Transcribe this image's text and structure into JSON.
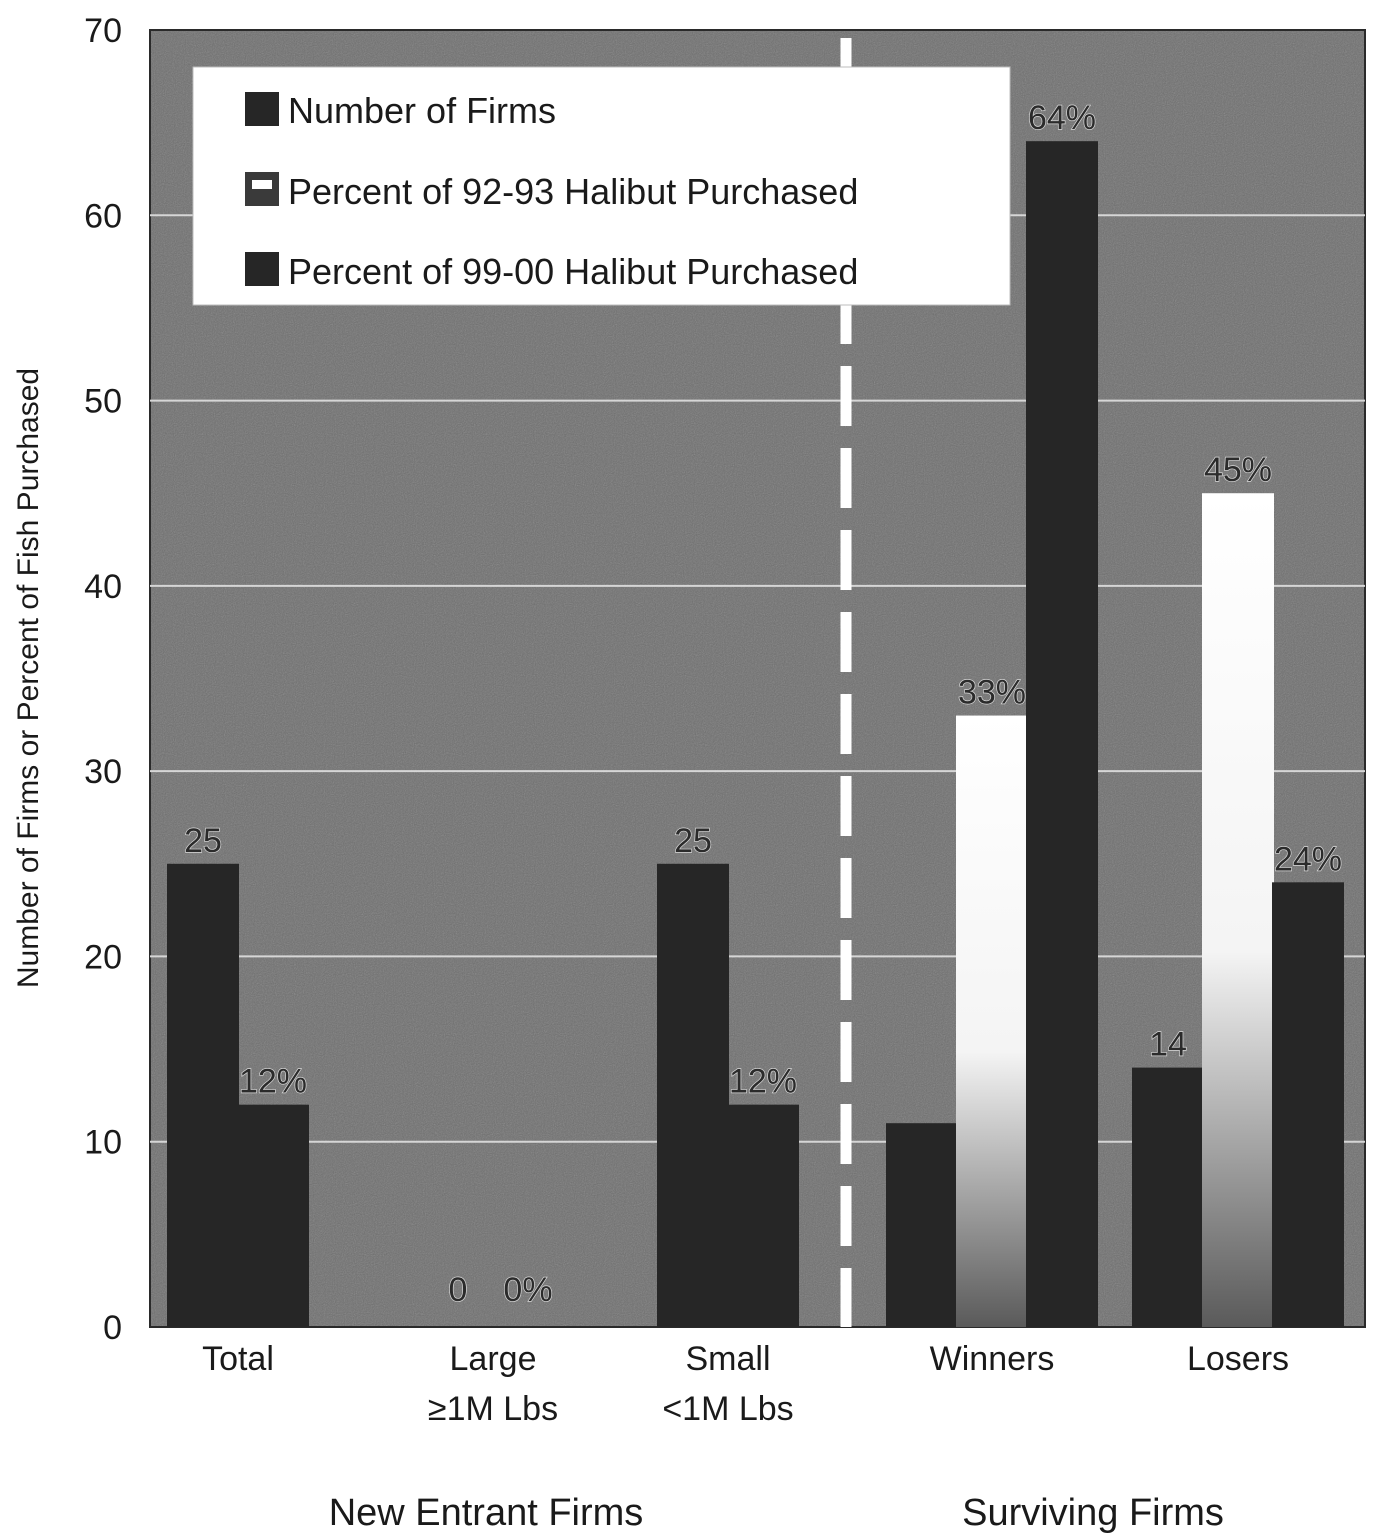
{
  "chart_data": {
    "type": "bar",
    "title": "",
    "ylabel": "Number of Firms or Percent of Fish Purchased",
    "ylim": [
      0,
      70
    ],
    "yticks": [
      0,
      10,
      20,
      30,
      40,
      50,
      60,
      70
    ],
    "grid": true,
    "legend_position": "top-left",
    "categories": [
      {
        "line1": "Total",
        "line2": ""
      },
      {
        "line1": "Large",
        "line2": "≥1M Lbs"
      },
      {
        "line1": "Small",
        "line2": "<1M Lbs"
      },
      {
        "line1": "Winners",
        "line2": ""
      },
      {
        "line1": "Losers",
        "line2": ""
      }
    ],
    "groups": [
      {
        "label": "New Entrant Firms",
        "categories": [
          0,
          1,
          2
        ]
      },
      {
        "label": "Surviving Firms",
        "categories": [
          3,
          4
        ]
      }
    ],
    "series": [
      {
        "name": "Number of Firms",
        "color": "#262626",
        "values": [
          25,
          0,
          25,
          11,
          14
        ],
        "labels": [
          "25",
          "0",
          "25",
          "",
          "14"
        ]
      },
      {
        "name": "Percent of 92-93 Halibut Purchased",
        "color": "#ffffff",
        "values": [
          null,
          null,
          null,
          33,
          45
        ],
        "labels": [
          "",
          "",
          "",
          "33%",
          "45%"
        ]
      },
      {
        "name": "Percent of 99-00 Halibut Purchased",
        "color": "#262626",
        "values": [
          12,
          0,
          12,
          64,
          24
        ],
        "labels": [
          "12%",
          "0%",
          "12%",
          "64%",
          "24%"
        ]
      }
    ]
  }
}
